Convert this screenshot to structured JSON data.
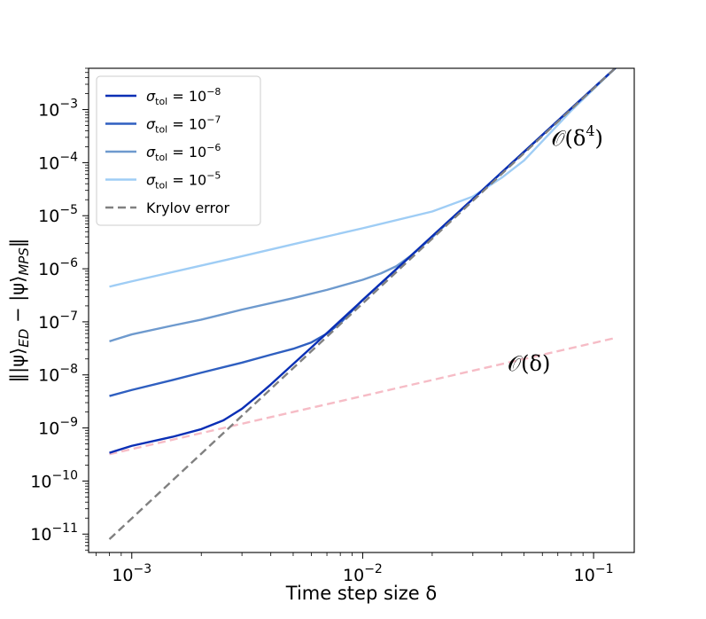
{
  "chart_data": {
    "type": "line",
    "xlabel": "Time step size δ",
    "ylabel": "‖|ψ⟩ED − |ψ⟩MPS‖",
    "xscale": "log",
    "yscale": "log",
    "xlim": [
      0.00065,
      0.15
    ],
    "ylim": [
      4.5e-12,
      0.006
    ],
    "xticks": [
      {
        "value": 0.001,
        "mant": "10",
        "exp": "−3"
      },
      {
        "value": 0.01,
        "mant": "10",
        "exp": "−2"
      },
      {
        "value": 0.1,
        "mant": "10",
        "exp": "−1"
      }
    ],
    "yticks": [
      {
        "value": 1e-11,
        "mant": "10",
        "exp": "−11"
      },
      {
        "value": 1e-10,
        "mant": "10",
        "exp": "−10"
      },
      {
        "value": 1e-09,
        "mant": "10",
        "exp": "−9"
      },
      {
        "value": 1e-08,
        "mant": "10",
        "exp": "−8"
      },
      {
        "value": 1e-07,
        "mant": "10",
        "exp": "−7"
      },
      {
        "value": 1e-06,
        "mant": "10",
        "exp": "−6"
      },
      {
        "value": 1e-05,
        "mant": "10",
        "exp": "−5"
      },
      {
        "value": 0.0001,
        "mant": "10",
        "exp": "−4"
      },
      {
        "value": 0.001,
        "mant": "10",
        "exp": "−3"
      }
    ],
    "grid": false,
    "legend_position": "top-left",
    "series": [
      {
        "name": "σtol = 10−8",
        "legend_sym": "σ",
        "legend_sub": "tol",
        "legend_eq": " = 10",
        "legend_sup": "−8",
        "color": "#0a2fb5",
        "dashed": false,
        "x": [
          0.0008,
          0.001,
          0.0015,
          0.002,
          0.0025,
          0.003,
          0.0035,
          0.004,
          0.005,
          0.006,
          0.008,
          0.01,
          0.015,
          0.02,
          0.03,
          0.05,
          0.08,
          0.125
        ],
        "y": [
          3.4e-10,
          4.6e-10,
          6.8e-10,
          9.5e-10,
          1.4e-09,
          2.3e-09,
          4e-09,
          6.6e-09,
          1.6e-08,
          3.3e-08,
          1.05e-07,
          2.57e-07,
          1.3e-06,
          4.1e-06,
          2.07e-05,
          0.00016,
          0.00105,
          0.0062
        ]
      },
      {
        "name": "σtol = 10−7",
        "legend_sym": "σ",
        "legend_sub": "tol",
        "legend_eq": " = 10",
        "legend_sup": "−7",
        "color": "#2f5fc0",
        "dashed": false,
        "x": [
          0.0008,
          0.001,
          0.0015,
          0.002,
          0.003,
          0.004,
          0.005,
          0.006,
          0.007,
          0.008,
          0.01,
          0.015,
          0.02,
          0.03,
          0.05,
          0.08,
          0.125
        ],
        "y": [
          4e-09,
          5.2e-09,
          8e-09,
          1.1e-08,
          1.7e-08,
          2.4e-08,
          3.1e-08,
          4.1e-08,
          6e-08,
          9.5e-08,
          2.6e-07,
          1.3e-06,
          4.1e-06,
          2.07e-05,
          0.00016,
          0.00105,
          0.0062
        ]
      },
      {
        "name": "σtol = 10−6",
        "legend_sym": "σ",
        "legend_sub": "tol",
        "legend_eq": " = 10",
        "legend_sup": "−6",
        "color": "#6e9ace",
        "dashed": false,
        "x": [
          0.0008,
          0.001,
          0.0015,
          0.002,
          0.003,
          0.005,
          0.007,
          0.01,
          0.012,
          0.014,
          0.016,
          0.02,
          0.03,
          0.05,
          0.08,
          0.125
        ],
        "y": [
          4.3e-08,
          5.8e-08,
          8.5e-08,
          1.1e-07,
          1.7e-07,
          2.8e-07,
          4e-07,
          6.2e-07,
          8.2e-07,
          1.12e-06,
          1.7e-06,
          3.9e-06,
          2.07e-05,
          0.00016,
          0.00105,
          0.0062
        ]
      },
      {
        "name": "σtol = 10−5",
        "legend_sym": "σ",
        "legend_sub": "tol",
        "legend_eq": " = 10",
        "legend_sup": "−5",
        "color": "#9fcdf5",
        "dashed": false,
        "x": [
          0.0008,
          0.001,
          0.002,
          0.003,
          0.005,
          0.01,
          0.02,
          0.03,
          0.04,
          0.05,
          0.08,
          0.125
        ],
        "y": [
          4.6e-07,
          5.8e-07,
          1.15e-06,
          1.72e-06,
          2.9e-06,
          5.8e-06,
          1.2e-05,
          2.3e-05,
          5.2e-05,
          0.00011,
          0.00095,
          0.0062
        ]
      },
      {
        "name": "Krylov error",
        "legend_sym": "",
        "legend_sub": "",
        "legend_eq": "Krylov error",
        "legend_sup": "",
        "color": "#808080",
        "dashed": true,
        "x": [
          0.0008,
          0.125
        ],
        "y": [
          8e-12,
          0.0062
        ]
      }
    ],
    "reference_lines": [
      {
        "label": "O(δ)",
        "color": "#f6bcc6",
        "dashed": true,
        "x": [
          0.0008,
          0.125
        ],
        "y": [
          3.2e-10,
          5e-08
        ]
      }
    ],
    "annotations": [
      {
        "label": "O(δ4)",
        "base": "𝒪(δ",
        "sup": "4",
        "close": ")",
        "x": 0.11,
        "y": 0.00021
      },
      {
        "label": "O(δ)",
        "base": "𝒪(δ)",
        "sup": "",
        "close": "",
        "x": 0.065,
        "y": 1.2e-08
      }
    ]
  }
}
